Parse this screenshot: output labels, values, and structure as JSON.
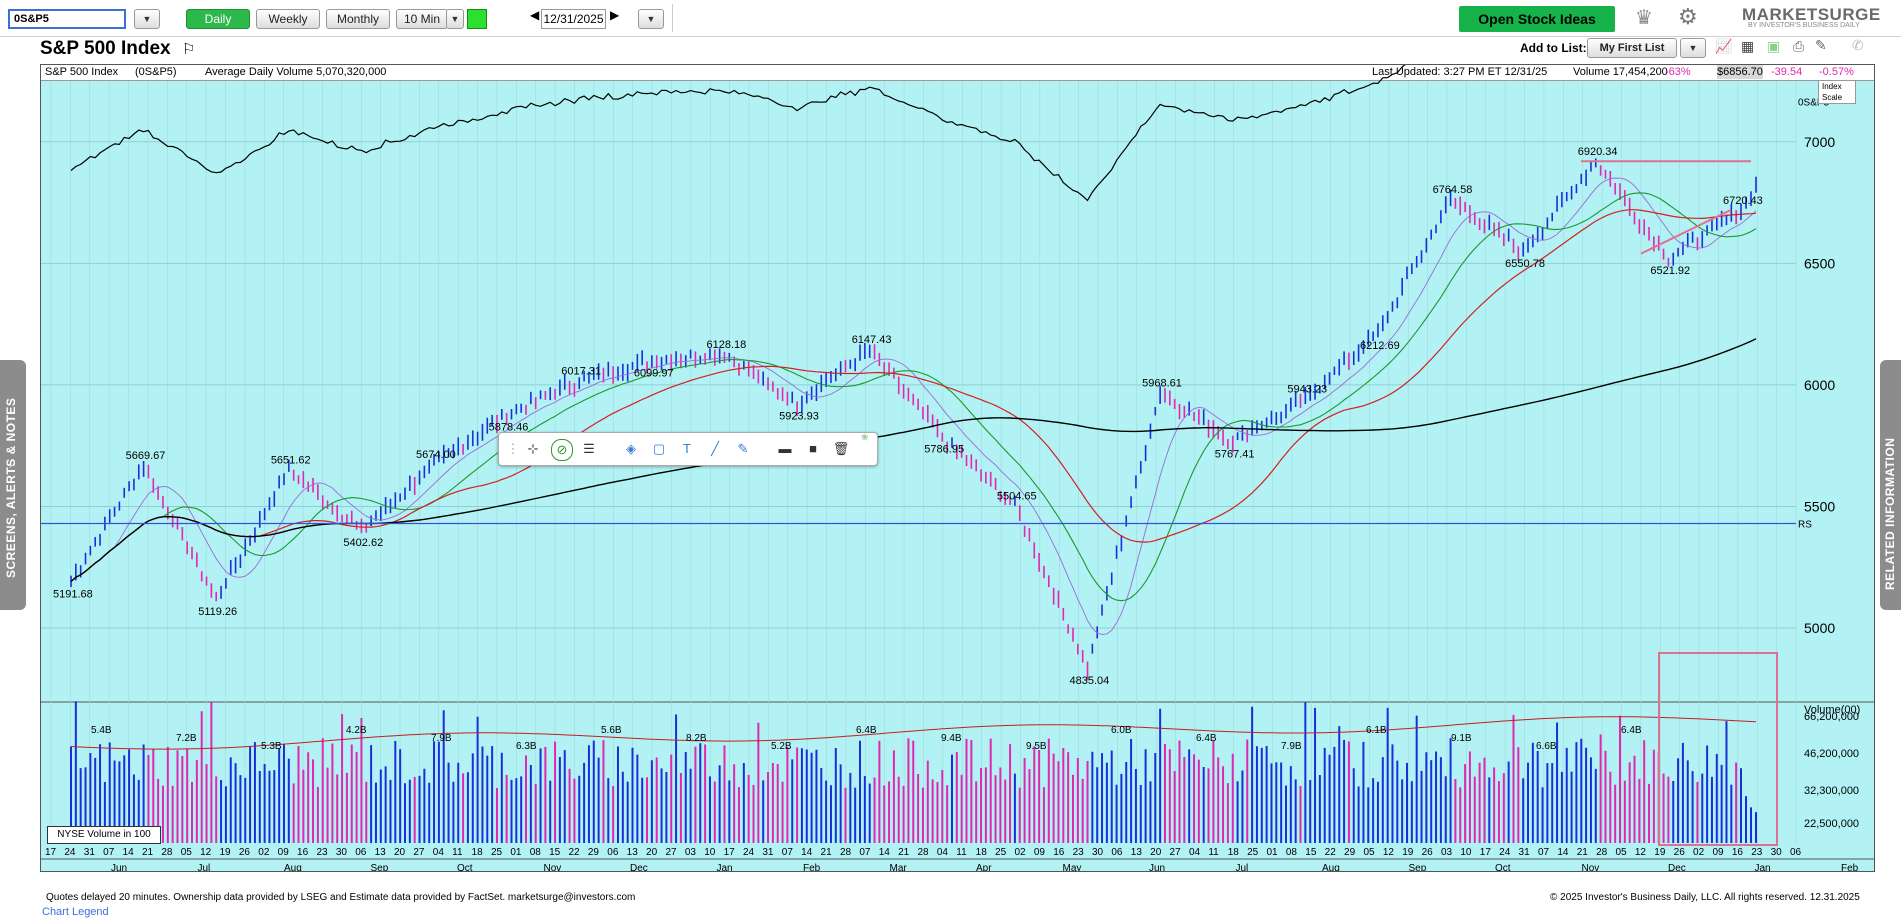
{
  "toolbar": {
    "symbol": "0S&P5",
    "periods": [
      "Daily",
      "Weekly",
      "Monthly",
      "10 Min"
    ],
    "active_period": "Daily",
    "date": "12/31/2025",
    "open_ideas": "Open Stock Ideas",
    "brand": "MARKETSURGE",
    "brand_sub": "BY INVESTOR'S BUSINESS DAILY"
  },
  "header": {
    "title": "S&P 500 Index",
    "add_to_list": "Add to List:",
    "list_name": "My First List"
  },
  "infobar": {
    "name": "S&P 500 Index",
    "symbol": "(0S&P5)",
    "avg_volume": "Average Daily Volume 5,070,320,000",
    "last_updated": "Last Updated: 3:27 PM ET 12/31/25",
    "volume": "Volume 17,454,200",
    "vol_pct": "-63%",
    "price": "$6856.70",
    "change": "-39.54",
    "change_pct": "-0.57%",
    "index_scale": [
      "Index",
      "Scale"
    ]
  },
  "chart_data": {
    "type": "line",
    "price_ticks": [
      7000,
      6500,
      6000,
      5500,
      5000
    ],
    "volume_ticks": [
      "66,200,000",
      "46,200,000",
      "32,300,000",
      "22,500,000"
    ],
    "volume_axis_label": "Volume(00)",
    "volume_label": "NYSE Volume in 100",
    "series_labels": [
      "0S&P5",
      "RS"
    ],
    "price_annotations": [
      {
        "label": "5191.68",
        "x": "Jun",
        "v": 5191.68
      },
      {
        "label": "5669.67",
        "x": "Jul",
        "v": 5669.67
      },
      {
        "label": "5119.26",
        "x": "Aug",
        "v": 5119.26
      },
      {
        "label": "5651.62",
        "x": "Aug",
        "v": 5651.62
      },
      {
        "label": "5402.62",
        "x": "Sep",
        "v": 5402.62
      },
      {
        "label": "5674.00",
        "x": "Sep",
        "v": 5674.0
      },
      {
        "label": "5878.46",
        "x": "Oct",
        "v": 5878.46
      },
      {
        "label": "6017.31",
        "x": "Nov",
        "v": 6017.31
      },
      {
        "label": "6099.97",
        "x": "Dec",
        "v": 6099.97
      },
      {
        "label": "6128.18",
        "x": "Jan",
        "v": 6128.18
      },
      {
        "label": "5923.93",
        "x": "Jan",
        "v": 5923.93
      },
      {
        "label": "6147.43",
        "x": "Feb",
        "v": 6147.43
      },
      {
        "label": "5786.95",
        "x": "Mar",
        "v": 5786.95
      },
      {
        "label": "5504.65",
        "x": "Mar",
        "v": 5504.65
      },
      {
        "label": "4835.04",
        "x": "Apr",
        "v": 4835.04
      },
      {
        "label": "5968.61",
        "x": "May",
        "v": 5968.61
      },
      {
        "label": "5767.41",
        "x": "May",
        "v": 5767.41
      },
      {
        "label": "5943.23",
        "x": "Jun",
        "v": 5943.23
      },
      {
        "label": "6212.69",
        "x": "Aug",
        "v": 6212.69
      },
      {
        "label": "6764.58",
        "x": "Oct",
        "v": 6764.58
      },
      {
        "label": "6550.78",
        "x": "Oct",
        "v": 6550.78
      },
      {
        "label": "6920.34",
        "x": "Oct",
        "v": 6920.34
      },
      {
        "label": "6521.92",
        "x": "Nov",
        "v": 6521.92
      },
      {
        "label": "6720.43",
        "x": "Dec",
        "v": 6720.43
      }
    ],
    "volume_annotations": [
      "5.4B",
      "7.2B",
      "5.3B",
      "4.2B",
      "7.9B",
      "6.3B",
      "5.6B",
      "8.2B",
      "5.2B",
      "6.4B",
      "9.4B",
      "9.5B",
      "6.0B",
      "6.4B",
      "7.9B",
      "6.1B",
      "9.1B",
      "6.6B",
      "6.4B"
    ],
    "x_ticks": [
      "17",
      "24",
      "31",
      "07",
      "14",
      "21",
      "28",
      "05",
      "12",
      "19",
      "26",
      "02",
      "09",
      "16",
      "23",
      "30",
      "06",
      "13",
      "20",
      "27",
      "04",
      "11",
      "18",
      "25",
      "01",
      "08",
      "15",
      "22",
      "29",
      "06",
      "13",
      "20",
      "27",
      "03",
      "10",
      "17",
      "24",
      "31",
      "07",
      "14",
      "21",
      "28",
      "07",
      "14",
      "21",
      "28",
      "04",
      "11",
      "18",
      "25",
      "02",
      "09",
      "16",
      "23",
      "30",
      "06",
      "13",
      "20",
      "27",
      "04",
      "11",
      "18",
      "25",
      "01",
      "08",
      "15",
      "22",
      "29",
      "05",
      "12",
      "19",
      "26",
      "03",
      "10",
      "17",
      "24",
      "31",
      "07",
      "14",
      "21",
      "28",
      "05",
      "12",
      "19",
      "26",
      "02",
      "09",
      "16",
      "23",
      "30",
      "06"
    ],
    "months": [
      "Jun",
      "Jul",
      "Aug",
      "Sep",
      "Oct",
      "Nov",
      "Dec",
      "Jan",
      "Feb",
      "Mar",
      "Apr",
      "May",
      "Jun",
      "Jul",
      "Aug",
      "Sep",
      "Oct",
      "Nov",
      "Dec",
      "Jan",
      "Feb"
    ],
    "price_range": [
      4700,
      7250
    ]
  },
  "footer": {
    "left": "Quotes delayed 20 minutes. Ownership data provided by LSEG and Estimate data provided by FactSet. marketsurge@investors.com",
    "right": "© 2025 Investor's Business Daily, LLC. All rights reserved.     12.31.2025",
    "legend": "Chart Legend"
  },
  "sidebars": {
    "left": "SCREENS, ALERTS & NOTES",
    "right": "RELATED INFORMATION"
  },
  "colors": {
    "bg": "#b3f2f4",
    "up": "#1b2fd8",
    "down": "#e028b0",
    "ma50": "#1a9a2a",
    "ma200": "#000000",
    "ma21": "#d42020",
    "rs": "#000000"
  }
}
